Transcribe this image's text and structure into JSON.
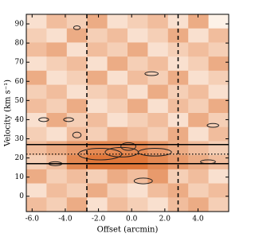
{
  "chart_data": {
    "type": "heatmap",
    "xlabel": "Offset (arcmin)",
    "ylabel": "Velocity (km s⁻¹)",
    "xlim": [
      -6.35,
      5.85
    ],
    "ylim": [
      -8,
      95
    ],
    "xticks": [
      {
        "value": -6,
        "label": "-6.0"
      },
      {
        "value": -4,
        "label": "-4.0"
      },
      {
        "value": -2,
        "label": "-2.0"
      },
      {
        "value": 0,
        "label": "0.0"
      },
      {
        "value": 2,
        "label": "2.0"
      },
      {
        "value": 4,
        "label": "4.0"
      }
    ],
    "yticks": [
      0,
      10,
      20,
      30,
      40,
      50,
      60,
      70,
      80,
      90
    ],
    "z": [
      [
        2,
        4,
        3,
        5,
        2,
        3,
        4,
        2,
        5,
        1
      ],
      [
        3,
        2,
        5,
        3,
        4,
        2,
        3,
        5,
        2,
        4
      ],
      [
        4,
        5,
        2,
        4,
        3,
        5,
        2,
        3,
        4,
        3
      ],
      [
        2,
        3,
        4,
        2,
        5,
        3,
        4,
        2,
        3,
        5
      ],
      [
        5,
        2,
        3,
        5,
        2,
        4,
        3,
        5,
        2,
        3
      ],
      [
        3,
        4,
        2,
        3,
        4,
        2,
        5,
        3,
        4,
        2
      ],
      [
        4,
        3,
        5,
        2,
        3,
        5,
        2,
        4,
        3,
        5
      ],
      [
        2,
        5,
        3,
        4,
        2,
        3,
        4,
        2,
        5,
        3
      ],
      [
        3,
        2,
        4,
        3,
        5,
        4,
        3,
        5,
        2,
        4
      ],
      [
        4,
        5,
        6,
        7,
        7,
        7,
        6,
        5,
        4,
        3
      ],
      [
        3,
        4,
        7,
        8,
        8,
        8,
        7,
        6,
        5,
        4
      ],
      [
        5,
        3,
        4,
        3,
        5,
        4,
        6,
        3,
        4,
        2
      ],
      [
        2,
        4,
        3,
        5,
        3,
        2,
        4,
        5,
        3,
        4
      ],
      [
        4,
        3,
        5,
        2,
        4,
        3,
        2,
        4,
        5,
        3
      ]
    ],
    "colors": [
      "#fdf2e8",
      "#e0773a"
    ],
    "vlines": [
      -2.7,
      2.8
    ],
    "hlines": [
      27,
      17
    ],
    "hline_dotted": 22,
    "contours": [
      {
        "x": -1.9,
        "y": 22,
        "w": 2.6,
        "h": 6
      },
      {
        "x": -0.6,
        "y": 23,
        "w": 2.0,
        "h": 5
      },
      {
        "x": 1.4,
        "y": 23,
        "w": 2.0,
        "h": 4
      },
      {
        "x": -0.2,
        "y": 26,
        "w": 0.9,
        "h": 4
      },
      {
        "x": 0.7,
        "y": 8,
        "w": 1.1,
        "h": 3
      },
      {
        "x": -4.6,
        "y": 17,
        "w": 0.8,
        "h": 2
      },
      {
        "x": 4.6,
        "y": 18,
        "w": 0.9,
        "h": 2
      },
      {
        "x": 4.9,
        "y": 37,
        "w": 0.7,
        "h": 2
      },
      {
        "x": -5.3,
        "y": 40,
        "w": 0.6,
        "h": 2
      },
      {
        "x": -3.8,
        "y": 40,
        "w": 0.6,
        "h": 2
      },
      {
        "x": 1.2,
        "y": 64,
        "w": 0.8,
        "h": 2
      },
      {
        "x": -3.3,
        "y": 88,
        "w": 0.4,
        "h": 2
      },
      {
        "x": -3.3,
        "y": 32,
        "w": 0.5,
        "h": 3
      }
    ]
  }
}
